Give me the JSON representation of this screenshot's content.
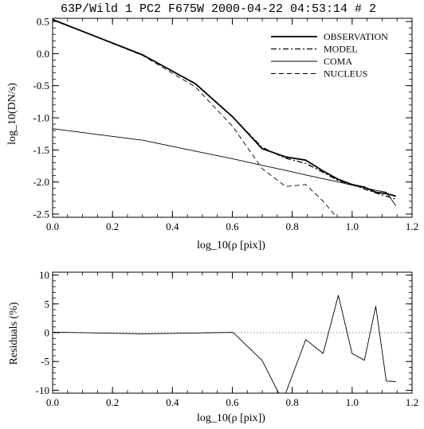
{
  "chart_data": [
    {
      "type": "line",
      "title": "63P/Wild 1 PC2 F675W 2000-04-22 04:53:14 # 2",
      "xlabel": "log_10(ρ [pix])",
      "ylabel": "log_10(DN/s)",
      "xlim": [
        0.0,
        1.2
      ],
      "ylim": [
        -2.55,
        0.55
      ],
      "xticks": [
        "0.0",
        "0.2",
        "0.4",
        "0.6",
        "0.8",
        "1.0",
        "1.2"
      ],
      "yticks": [
        "0.5",
        "0.0",
        "-0.5",
        "-1.0",
        "-1.5",
        "-2.0",
        "-2.5"
      ],
      "xtick_values": [
        0.0,
        0.2,
        0.4,
        0.6,
        0.8,
        1.0,
        1.2
      ],
      "ytick_values": [
        0.5,
        0.0,
        -0.5,
        -1.0,
        -1.5,
        -2.0,
        -2.5
      ],
      "legend_position": "top-right",
      "series": [
        {
          "name": "OBSERVATION",
          "style": "solid-thick",
          "x": [
            0.0,
            0.301,
            0.477,
            0.602,
            0.699,
            0.778,
            0.845,
            0.903,
            0.954,
            1.0,
            1.041,
            1.079,
            1.114,
            1.146
          ],
          "y": [
            0.53,
            -0.02,
            -0.47,
            -0.99,
            -1.48,
            -1.61,
            -1.66,
            -1.83,
            -1.96,
            -2.04,
            -2.08,
            -2.16,
            -2.18,
            -2.22
          ]
        },
        {
          "name": "MODEL",
          "style": "dash-dot",
          "x": [
            0.0,
            0.301,
            0.477,
            0.602,
            0.699,
            0.778,
            0.845,
            0.903,
            0.954,
            1.0,
            1.041,
            1.079,
            1.114,
            1.146
          ],
          "y": [
            0.53,
            -0.02,
            -0.47,
            -0.99,
            -1.46,
            -1.63,
            -1.71,
            -1.85,
            -1.98,
            -2.04,
            -2.11,
            -2.17,
            -2.22,
            -2.27
          ]
        },
        {
          "name": "COMA",
          "style": "solid-thin",
          "x": [
            0.0,
            0.301,
            0.477,
            0.602,
            0.699,
            0.778,
            0.845,
            0.903,
            0.954,
            1.0,
            1.041,
            1.079,
            1.114,
            1.146
          ],
          "y": [
            -1.17,
            -1.35,
            -1.52,
            -1.64,
            -1.74,
            -1.82,
            -1.89,
            -1.95,
            -2.0,
            -2.05,
            -2.09,
            -2.13,
            -2.16,
            -2.37
          ]
        },
        {
          "name": "NUCLEUS",
          "style": "dashed",
          "x": [
            0.0,
            0.301,
            0.477,
            0.602,
            0.699,
            0.778,
            0.845,
            0.903,
            0.954
          ],
          "y": [
            0.53,
            -0.03,
            -0.52,
            -1.14,
            -1.79,
            -2.07,
            -2.04,
            -2.3,
            -2.58
          ]
        }
      ]
    },
    {
      "type": "line",
      "title": "",
      "xlabel": "log_10(ρ [pix])",
      "ylabel": "Residuals (%)",
      "xlim": [
        0.0,
        1.2
      ],
      "ylim": [
        -10.5,
        10.5
      ],
      "xticks": [
        "0.0",
        "0.2",
        "0.4",
        "0.6",
        "0.8",
        "1.0",
        "1.2"
      ],
      "yticks": [
        "10",
        "5",
        "0",
        "-5",
        "-10"
      ],
      "xtick_values": [
        0.0,
        0.2,
        0.4,
        0.6,
        0.8,
        1.0,
        1.2
      ],
      "ytick_values": [
        10,
        5,
        0,
        -5,
        -10
      ],
      "reference_line": 0,
      "series": [
        {
          "style": "solid-thin",
          "x": [
            0.0,
            0.301,
            0.477,
            0.602,
            0.699,
            0.755,
            0.778,
            0.845,
            0.903,
            0.954,
            1.0,
            1.041,
            1.079,
            1.114,
            1.146
          ],
          "y": [
            0.1,
            -0.2,
            -0.05,
            0.05,
            -4.8,
            -10.5,
            -10.5,
            -1.2,
            -3.6,
            6.5,
            -3.6,
            -4.8,
            4.6,
            -8.4,
            -8.5
          ]
        }
      ]
    }
  ]
}
